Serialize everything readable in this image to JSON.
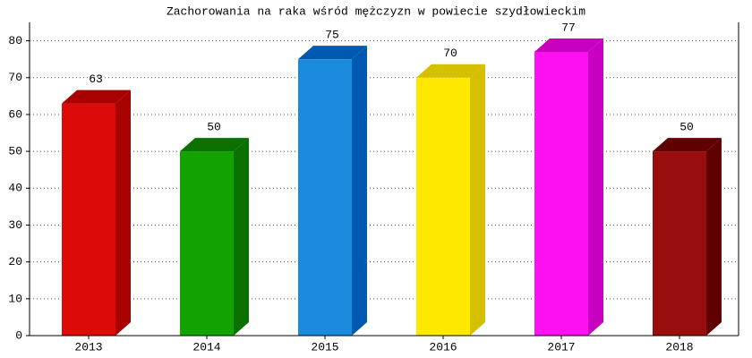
{
  "chart_data": {
    "type": "bar3d",
    "title": "Zachorowania na raka wśród mężczyzn w powiecie szydłowieckim",
    "categories": [
      "2013",
      "2014",
      "2015",
      "2016",
      "2017",
      "2018"
    ],
    "values": [
      63,
      50,
      75,
      70,
      77,
      50
    ],
    "colors": [
      "#dd0a0a",
      "#12a300",
      "#1a8adc",
      "#ffe800",
      "#ff10f0",
      "#980e0e"
    ],
    "side_colors": [
      "#a80000",
      "#0a7000",
      "#0059b0",
      "#d4bf00",
      "#c800c0",
      "#600000"
    ],
    "ylim": [
      0,
      85
    ],
    "yticks": [
      0,
      10,
      20,
      30,
      40,
      50,
      60,
      70,
      80
    ],
    "grid": true
  }
}
